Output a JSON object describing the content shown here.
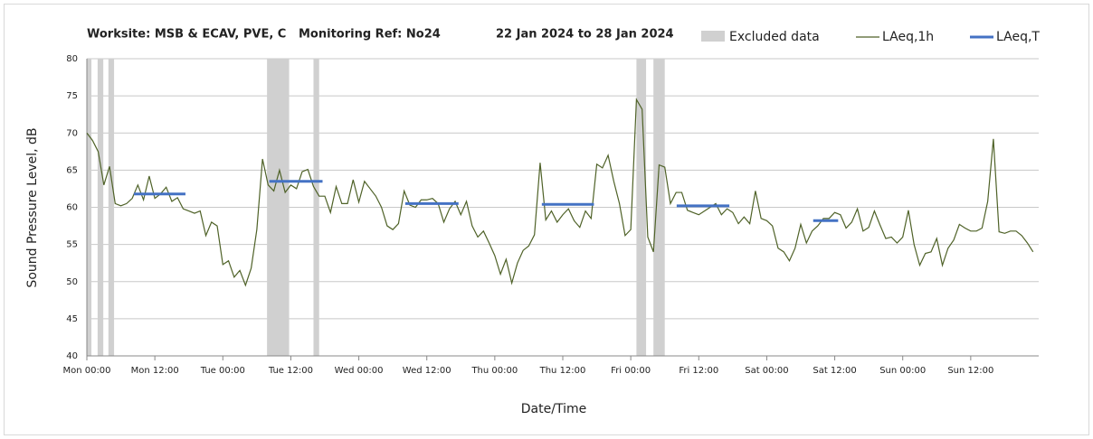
{
  "chart_data": {
    "type": "line",
    "title": "Worksite: MSB & ECAV, PVE, C",
    "monitoring_ref": "Monitoring Ref: No24",
    "date_range": "22 Jan 2024 to 28 Jan 2024",
    "x_label": "Date/Time",
    "y_label": "Sound Pressure Level, dB",
    "xlim": [
      0,
      168
    ],
    "ylim": [
      40,
      80
    ],
    "yticks": [
      40,
      45,
      50,
      55,
      60,
      65,
      70,
      75,
      80
    ],
    "xticks": [
      {
        "value": 0,
        "label": "Mon 00:00"
      },
      {
        "value": 12,
        "label": "Mon 12:00"
      },
      {
        "value": 24,
        "label": "Tue 00:00"
      },
      {
        "value": 36,
        "label": "Tue 12:00"
      },
      {
        "value": 48,
        "label": "Wed 00:00"
      },
      {
        "value": 60,
        "label": "Wed 12:00"
      },
      {
        "value": 72,
        "label": "Thu 00:00"
      },
      {
        "value": 84,
        "label": "Thu 12:00"
      },
      {
        "value": 96,
        "label": "Fri 00:00"
      },
      {
        "value": 108,
        "label": "Fri 12:00"
      },
      {
        "value": 120,
        "label": "Sat 00:00"
      },
      {
        "value": 132,
        "label": "Sat 12:00"
      },
      {
        "value": 144,
        "label": "Sun 00:00"
      },
      {
        "value": 156,
        "label": "Sun 12:00"
      }
    ],
    "grid": true,
    "excluded": {
      "name": "Excluded data",
      "color": "#d0d0d0",
      "start": [
        0,
        1.9,
        3.8,
        31.8,
        40,
        97,
        100
      ],
      "end": [
        0.8,
        2.9,
        4.8,
        35.7,
        41,
        98.7,
        102
      ]
    },
    "series": [
      {
        "name": "LAeq,1h",
        "color": "#4f6228",
        "x": [
          0,
          1,
          2,
          3,
          4,
          5,
          6,
          7,
          8,
          9,
          10,
          11,
          12,
          13,
          14,
          15,
          16,
          17,
          18,
          19,
          20,
          21,
          22,
          23,
          24,
          25,
          26,
          27,
          28,
          29,
          30,
          31,
          32,
          33,
          34,
          35,
          36,
          37,
          38,
          39,
          40,
          41,
          42,
          43,
          44,
          45,
          46,
          47,
          48,
          49,
          50,
          51,
          52,
          53,
          54,
          55,
          56,
          57,
          58,
          59,
          60,
          61,
          62,
          63,
          64,
          65,
          66,
          67,
          68,
          69,
          70,
          71,
          72,
          73,
          74,
          75,
          76,
          77,
          78,
          79,
          80,
          81,
          82,
          83,
          84,
          85,
          86,
          87,
          88,
          89,
          90,
          91,
          92,
          93,
          94,
          95,
          96,
          97,
          98,
          99,
          100,
          101,
          102,
          103,
          104,
          105,
          106,
          107,
          108,
          109,
          110,
          111,
          112,
          113,
          114,
          115,
          116,
          117,
          118,
          119,
          120,
          121,
          122,
          123,
          124,
          125,
          126,
          127,
          128,
          129,
          130,
          131,
          132,
          133,
          134,
          135,
          136,
          137,
          138,
          139,
          140,
          141,
          142,
          143,
          144,
          145,
          146,
          147,
          148,
          149,
          150,
          151,
          152,
          153,
          154,
          155,
          156,
          157,
          158,
          159,
          160,
          161,
          162,
          163,
          164,
          165,
          166,
          167
        ],
        "values": [
          70,
          69,
          67.5,
          63,
          65.5,
          60.5,
          60.2,
          60.5,
          61.2,
          63,
          61,
          64.2,
          61.2,
          61.8,
          62.7,
          60.8,
          61.3,
          59.8,
          59.5,
          59.2,
          59.5,
          56.2,
          58,
          57.5,
          52.3,
          52.8,
          50.6,
          51.5,
          49.5,
          51.8,
          57,
          66.5,
          63,
          62.2,
          65,
          62,
          63,
          62.5,
          64.8,
          65.1,
          62.8,
          61.5,
          61.5,
          59.3,
          62.8,
          60.5,
          60.5,
          63.7,
          60.7,
          63.5,
          62.5,
          61.5,
          60,
          57.5,
          57,
          57.8,
          62.2,
          60.3,
          60,
          61,
          61,
          61.2,
          60.5,
          58,
          59.8,
          60.8,
          59,
          60.8,
          57.5,
          56,
          56.8,
          55.2,
          53.5,
          51,
          53,
          49.8,
          52.5,
          54.2,
          54.8,
          56.3,
          66,
          58.3,
          59.5,
          58,
          59,
          59.8,
          58.2,
          57.3,
          59.5,
          58.5,
          65.8,
          65.3,
          67,
          63.5,
          60.5,
          56.2,
          57,
          74.5,
          73.2,
          56,
          54,
          65.7,
          65.4,
          60.5,
          62,
          62,
          59.6,
          59.3,
          59,
          59.5,
          60,
          60.5,
          59,
          59.8,
          59.3,
          57.8,
          58.7,
          57.8,
          62.2,
          58.5,
          58.2,
          57.5,
          54.5,
          54,
          52.8,
          54.5,
          57.7,
          55.2,
          56.8,
          57.5,
          58.5,
          58.5,
          59.3,
          59,
          57.2,
          58,
          59.8,
          56.8,
          57.3,
          59.5,
          57.6,
          55.8,
          56,
          55.2,
          56,
          59.6,
          55,
          52.2,
          53.8,
          54,
          55.8,
          52.2,
          54.5,
          55.6,
          57.7,
          57.2,
          56.8,
          56.8,
          57.2,
          60.8,
          69.2,
          56.7,
          56.5,
          56.8,
          56.8,
          56.2,
          55.2,
          54
        ]
      },
      {
        "name": "LAeq,T",
        "color": "#4472c4",
        "x_start": [
          8.3,
          32.2,
          56.2,
          80.3,
          104.1,
          128.2
        ],
        "x_end": [
          17.4,
          41.6,
          65.6,
          89.5,
          113.4,
          132.6
        ],
        "values": [
          61.8,
          63.5,
          60.5,
          60.4,
          60.2,
          58.2
        ]
      }
    ]
  }
}
